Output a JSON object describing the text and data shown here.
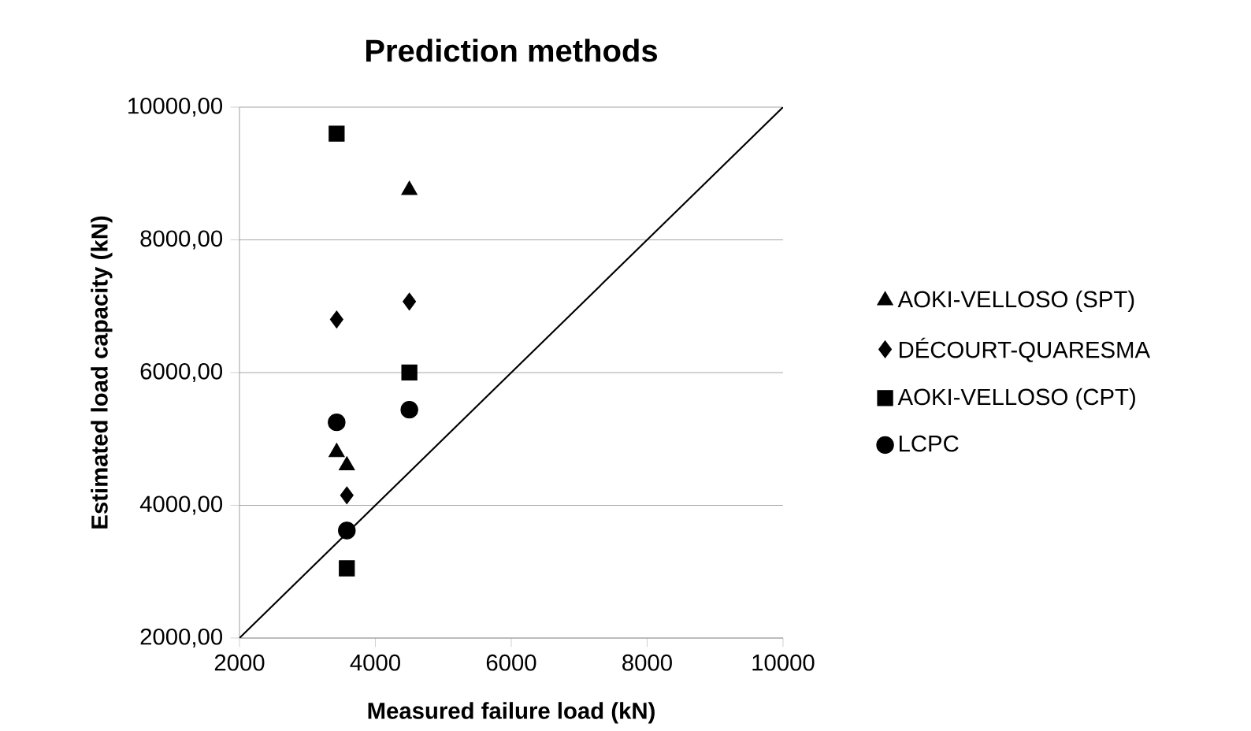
{
  "chart_data": {
    "type": "scatter",
    "title": "Prediction methods",
    "xlabel": "Measured  failure load (kN)",
    "ylabel": "Estimated load capacity (kN)",
    "xlim": [
      2000,
      10000
    ],
    "ylim": [
      2000,
      10000
    ],
    "xticks": [
      2000,
      4000,
      6000,
      8000,
      10000
    ],
    "yticks": [
      {
        "value": 2000,
        "label": "2000,00"
      },
      {
        "value": 4000,
        "label": "4000,00"
      },
      {
        "value": 6000,
        "label": "6000,00"
      },
      {
        "value": 8000,
        "label": "8000,00"
      },
      {
        "value": 10000,
        "label": "10000,00"
      }
    ],
    "grid": "y",
    "legend": "right",
    "series": [
      {
        "name": "AOKI-VELLOSO (SPT)",
        "color": "#000000",
        "marker": "triangle",
        "x": [
          3430,
          3580,
          4500
        ],
        "values": [
          4800,
          4600,
          8750
        ]
      },
      {
        "name": "DÉCOURT-QUARESMA",
        "color": "#000000",
        "marker": "diamond",
        "x": [
          3430,
          3580,
          4500
        ],
        "values": [
          6800,
          4150,
          7070
        ]
      },
      {
        "name": "AOKI-VELLOSO (CPT)",
        "color": "#000000",
        "marker": "square",
        "x": [
          3430,
          3580,
          4500
        ],
        "values": [
          9600,
          3050,
          6000
        ]
      },
      {
        "name": "LCPC",
        "color": "#000000",
        "marker": "circle",
        "x": [
          3430,
          3580,
          4500
        ],
        "values": [
          5250,
          3620,
          5440
        ]
      },
      {
        "type": "line",
        "color": "#000000",
        "marker": "none",
        "x": [
          2000,
          10000
        ],
        "values": [
          2000,
          10000
        ]
      }
    ]
  }
}
